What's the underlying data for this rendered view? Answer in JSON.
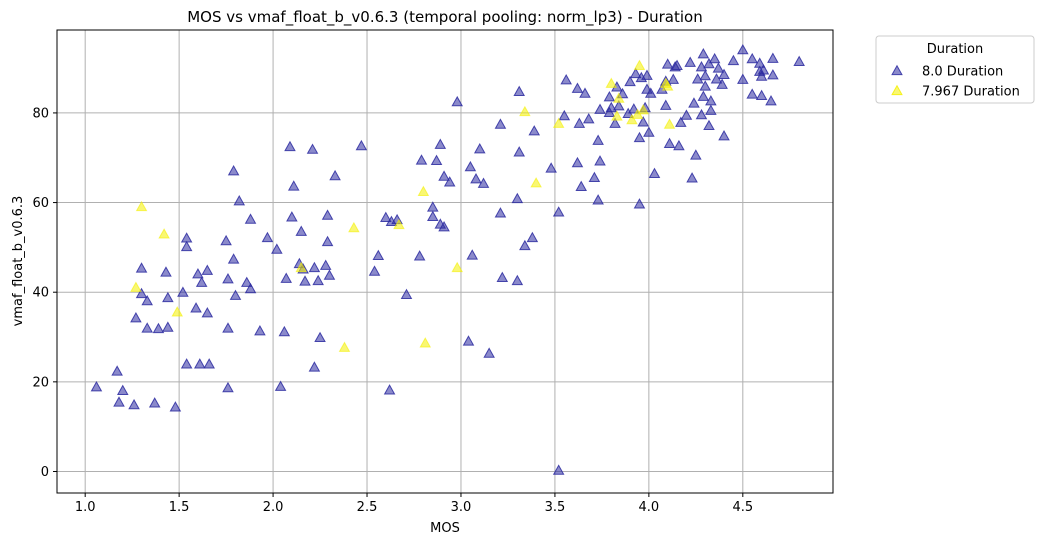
{
  "chart_data": {
    "type": "scatter",
    "title": "MOS vs vmaf_float_b_v0.6.3 (temporal pooling: norm_lp3) - Duration",
    "xlabel": "MOS",
    "ylabel": "vmaf_float_b_v0.6.3",
    "xlim": [
      0.85,
      4.98
    ],
    "ylim": [
      -4.8,
      98.5
    ],
    "xticks": [
      1.0,
      1.5,
      2.0,
      2.5,
      3.0,
      3.5,
      4.0,
      4.5
    ],
    "xtick_labels": [
      "1.0",
      "1.5",
      "2.0",
      "2.5",
      "3.0",
      "3.5",
      "4.0",
      "4.5"
    ],
    "yticks": [
      0,
      20,
      40,
      60,
      80
    ],
    "ytick_labels": [
      "0",
      "20",
      "40",
      "60",
      "80"
    ],
    "grid": true,
    "marker": "triangle-up",
    "legend": {
      "title": "Duration",
      "placement": "outside-top-right"
    },
    "series": [
      {
        "name": "8.0 Duration",
        "color": "#2c2aa0",
        "points": [
          [
            1.06,
            18.8
          ],
          [
            1.17,
            22.3
          ],
          [
            1.18,
            15.4
          ],
          [
            1.2,
            18
          ],
          [
            1.26,
            14.8
          ],
          [
            1.27,
            34.2
          ],
          [
            1.3,
            45.3
          ],
          [
            1.3,
            39.6
          ],
          [
            1.33,
            38
          ],
          [
            1.33,
            31.9
          ],
          [
            1.37,
            15.2
          ],
          [
            1.39,
            31.8
          ],
          [
            1.43,
            44.4
          ],
          [
            1.44,
            38.7
          ],
          [
            1.44,
            32.1
          ],
          [
            1.48,
            14.3
          ],
          [
            1.52,
            39.9
          ],
          [
            1.54,
            52
          ],
          [
            1.54,
            50.1
          ],
          [
            1.54,
            23.9
          ],
          [
            1.59,
            36.4
          ],
          [
            1.6,
            44
          ],
          [
            1.61,
            23.9
          ],
          [
            1.62,
            42.1
          ],
          [
            1.65,
            44.8
          ],
          [
            1.65,
            35.3
          ],
          [
            1.66,
            23.9
          ],
          [
            1.75,
            51.4
          ],
          [
            1.76,
            42.9
          ],
          [
            1.76,
            31.9
          ],
          [
            1.76,
            18.6
          ],
          [
            1.79,
            67
          ],
          [
            1.79,
            47.3
          ],
          [
            1.8,
            39.2
          ],
          [
            1.82,
            60.3
          ],
          [
            1.86,
            42.1
          ],
          [
            1.88,
            56.2
          ],
          [
            1.88,
            40.7
          ],
          [
            1.93,
            31.3
          ],
          [
            1.97,
            52.1
          ],
          [
            2.02,
            49.5
          ],
          [
            2.04,
            18.9
          ],
          [
            2.06,
            31.1
          ],
          [
            2.07,
            43
          ],
          [
            2.09,
            72.4
          ],
          [
            2.1,
            56.7
          ],
          [
            2.11,
            63.6
          ],
          [
            2.15,
            53.5
          ],
          [
            2.14,
            46.3
          ],
          [
            2.16,
            45.1
          ],
          [
            2.17,
            42.4
          ],
          [
            2.21,
            71.8
          ],
          [
            2.22,
            45.4
          ],
          [
            2.22,
            23.2
          ],
          [
            2.24,
            42.5
          ],
          [
            2.25,
            29.8
          ],
          [
            2.28,
            45.9
          ],
          [
            2.29,
            57.1
          ],
          [
            2.29,
            51.2
          ],
          [
            2.3,
            43.7
          ],
          [
            2.33,
            65.9
          ],
          [
            2.47,
            72.6
          ],
          [
            2.54,
            44.6
          ],
          [
            2.56,
            48.1
          ],
          [
            2.6,
            56.6
          ],
          [
            2.62,
            18.1
          ],
          [
            2.63,
            55.7
          ],
          [
            2.66,
            56.1
          ],
          [
            2.71,
            39.4
          ],
          [
            2.78,
            48
          ],
          [
            2.79,
            69.4
          ],
          [
            2.85,
            58.9
          ],
          [
            2.85,
            56.8
          ],
          [
            2.87,
            69.3
          ],
          [
            2.89,
            72.9
          ],
          [
            2.89,
            55.1
          ],
          [
            2.91,
            54.5
          ],
          [
            2.91,
            65.8
          ],
          [
            2.94,
            64.5
          ],
          [
            2.98,
            82.4
          ],
          [
            3.04,
            29
          ],
          [
            3.05,
            67.9
          ],
          [
            3.06,
            48.2
          ],
          [
            3.08,
            65.2
          ],
          [
            3.1,
            71.9
          ],
          [
            3.12,
            64.2
          ],
          [
            3.15,
            26.3
          ],
          [
            3.21,
            77.4
          ],
          [
            3.21,
            57.6
          ],
          [
            3.22,
            43.2
          ],
          [
            3.3,
            60.8
          ],
          [
            3.3,
            42.5
          ],
          [
            3.31,
            71.2
          ],
          [
            3.31,
            84.7
          ],
          [
            3.34,
            50.3
          ],
          [
            3.38,
            52.1
          ],
          [
            3.39,
            75.9
          ],
          [
            3.48,
            67.6
          ],
          [
            3.52,
            57.8
          ],
          [
            3.52,
            0.2
          ],
          [
            3.55,
            79.3
          ],
          [
            3.56,
            87.3
          ],
          [
            3.62,
            68.8
          ],
          [
            3.62,
            85.4
          ],
          [
            3.63,
            77.6
          ],
          [
            3.64,
            63.5
          ],
          [
            3.66,
            84.3
          ],
          [
            3.68,
            78.6
          ],
          [
            3.71,
            65.5
          ],
          [
            3.73,
            73.8
          ],
          [
            3.73,
            60.5
          ],
          [
            3.74,
            69.2
          ],
          [
            3.74,
            80.7
          ],
          [
            3.79,
            83.5
          ],
          [
            3.79,
            80
          ],
          [
            3.8,
            81.1
          ],
          [
            3.82,
            77.6
          ],
          [
            3.83,
            85.7
          ],
          [
            3.84,
            81.5
          ],
          [
            3.86,
            84.2
          ],
          [
            3.89,
            79.8
          ],
          [
            3.9,
            86.9
          ],
          [
            3.92,
            80.8
          ],
          [
            3.93,
            88.7
          ],
          [
            3.95,
            74.4
          ],
          [
            3.95,
            59.6
          ],
          [
            3.96,
            87.8
          ],
          [
            3.97,
            77.9
          ],
          [
            3.98,
            81.1
          ],
          [
            3.99,
            88.3
          ],
          [
            3.99,
            85.2
          ],
          [
            4.0,
            75.6
          ],
          [
            4.01,
            84.3
          ],
          [
            4.03,
            66.4
          ],
          [
            4.07,
            85.2
          ],
          [
            4.09,
            81.6
          ],
          [
            4.09,
            87
          ],
          [
            4.1,
            90.8
          ],
          [
            4.11,
            73.1
          ],
          [
            4.13,
            87.4
          ],
          [
            4.14,
            90.2
          ],
          [
            4.15,
            90.5
          ],
          [
            4.16,
            72.6
          ],
          [
            4.17,
            77.8
          ],
          [
            4.2,
            79.4
          ],
          [
            4.22,
            91.2
          ],
          [
            4.23,
            65.4
          ],
          [
            4.24,
            82.1
          ],
          [
            4.25,
            70.5
          ],
          [
            4.26,
            87.5
          ],
          [
            4.28,
            90.2
          ],
          [
            4.28,
            79.5
          ],
          [
            4.29,
            93.1
          ],
          [
            4.29,
            83.6
          ],
          [
            4.3,
            88.2
          ],
          [
            4.3,
            85.9
          ],
          [
            4.32,
            77.1
          ],
          [
            4.32,
            90.9
          ],
          [
            4.33,
            80.5
          ],
          [
            4.33,
            82.6
          ],
          [
            4.35,
            92
          ],
          [
            4.36,
            87.5
          ],
          [
            4.37,
            89.9
          ],
          [
            4.39,
            86.3
          ],
          [
            4.4,
            74.8
          ],
          [
            4.4,
            88.5
          ],
          [
            4.45,
            91.6
          ],
          [
            4.5,
            87.4
          ],
          [
            4.5,
            94
          ],
          [
            4.55,
            92
          ],
          [
            4.55,
            84.1
          ],
          [
            4.59,
            91
          ],
          [
            4.59,
            89.2
          ],
          [
            4.6,
            88.1
          ],
          [
            4.6,
            83.8
          ],
          [
            4.61,
            89.5
          ],
          [
            4.65,
            82.6
          ],
          [
            4.66,
            92.1
          ],
          [
            4.66,
            88.4
          ],
          [
            4.8,
            91.4
          ]
        ]
      },
      {
        "name": "7.967 Duration",
        "color": "#f4f000",
        "points": [
          [
            1.27,
            41
          ],
          [
            1.3,
            59
          ],
          [
            1.42,
            52.9
          ],
          [
            1.49,
            35.5
          ],
          [
            2.15,
            45.4
          ],
          [
            2.38,
            27.6
          ],
          [
            2.43,
            54.3
          ],
          [
            2.67,
            55
          ],
          [
            2.8,
            62.4
          ],
          [
            2.81,
            28.6
          ],
          [
            2.98,
            45.4
          ],
          [
            3.34,
            80.2
          ],
          [
            3.4,
            64.3
          ],
          [
            3.52,
            77.6
          ],
          [
            3.8,
            86.5
          ],
          [
            3.83,
            79.2
          ],
          [
            3.84,
            83.2
          ],
          [
            3.91,
            78.4
          ],
          [
            3.94,
            79.6
          ],
          [
            3.95,
            90.5
          ],
          [
            3.97,
            80.6
          ],
          [
            4.09,
            86.5
          ],
          [
            4.1,
            85.9
          ],
          [
            4.11,
            77.4
          ]
        ]
      }
    ]
  }
}
